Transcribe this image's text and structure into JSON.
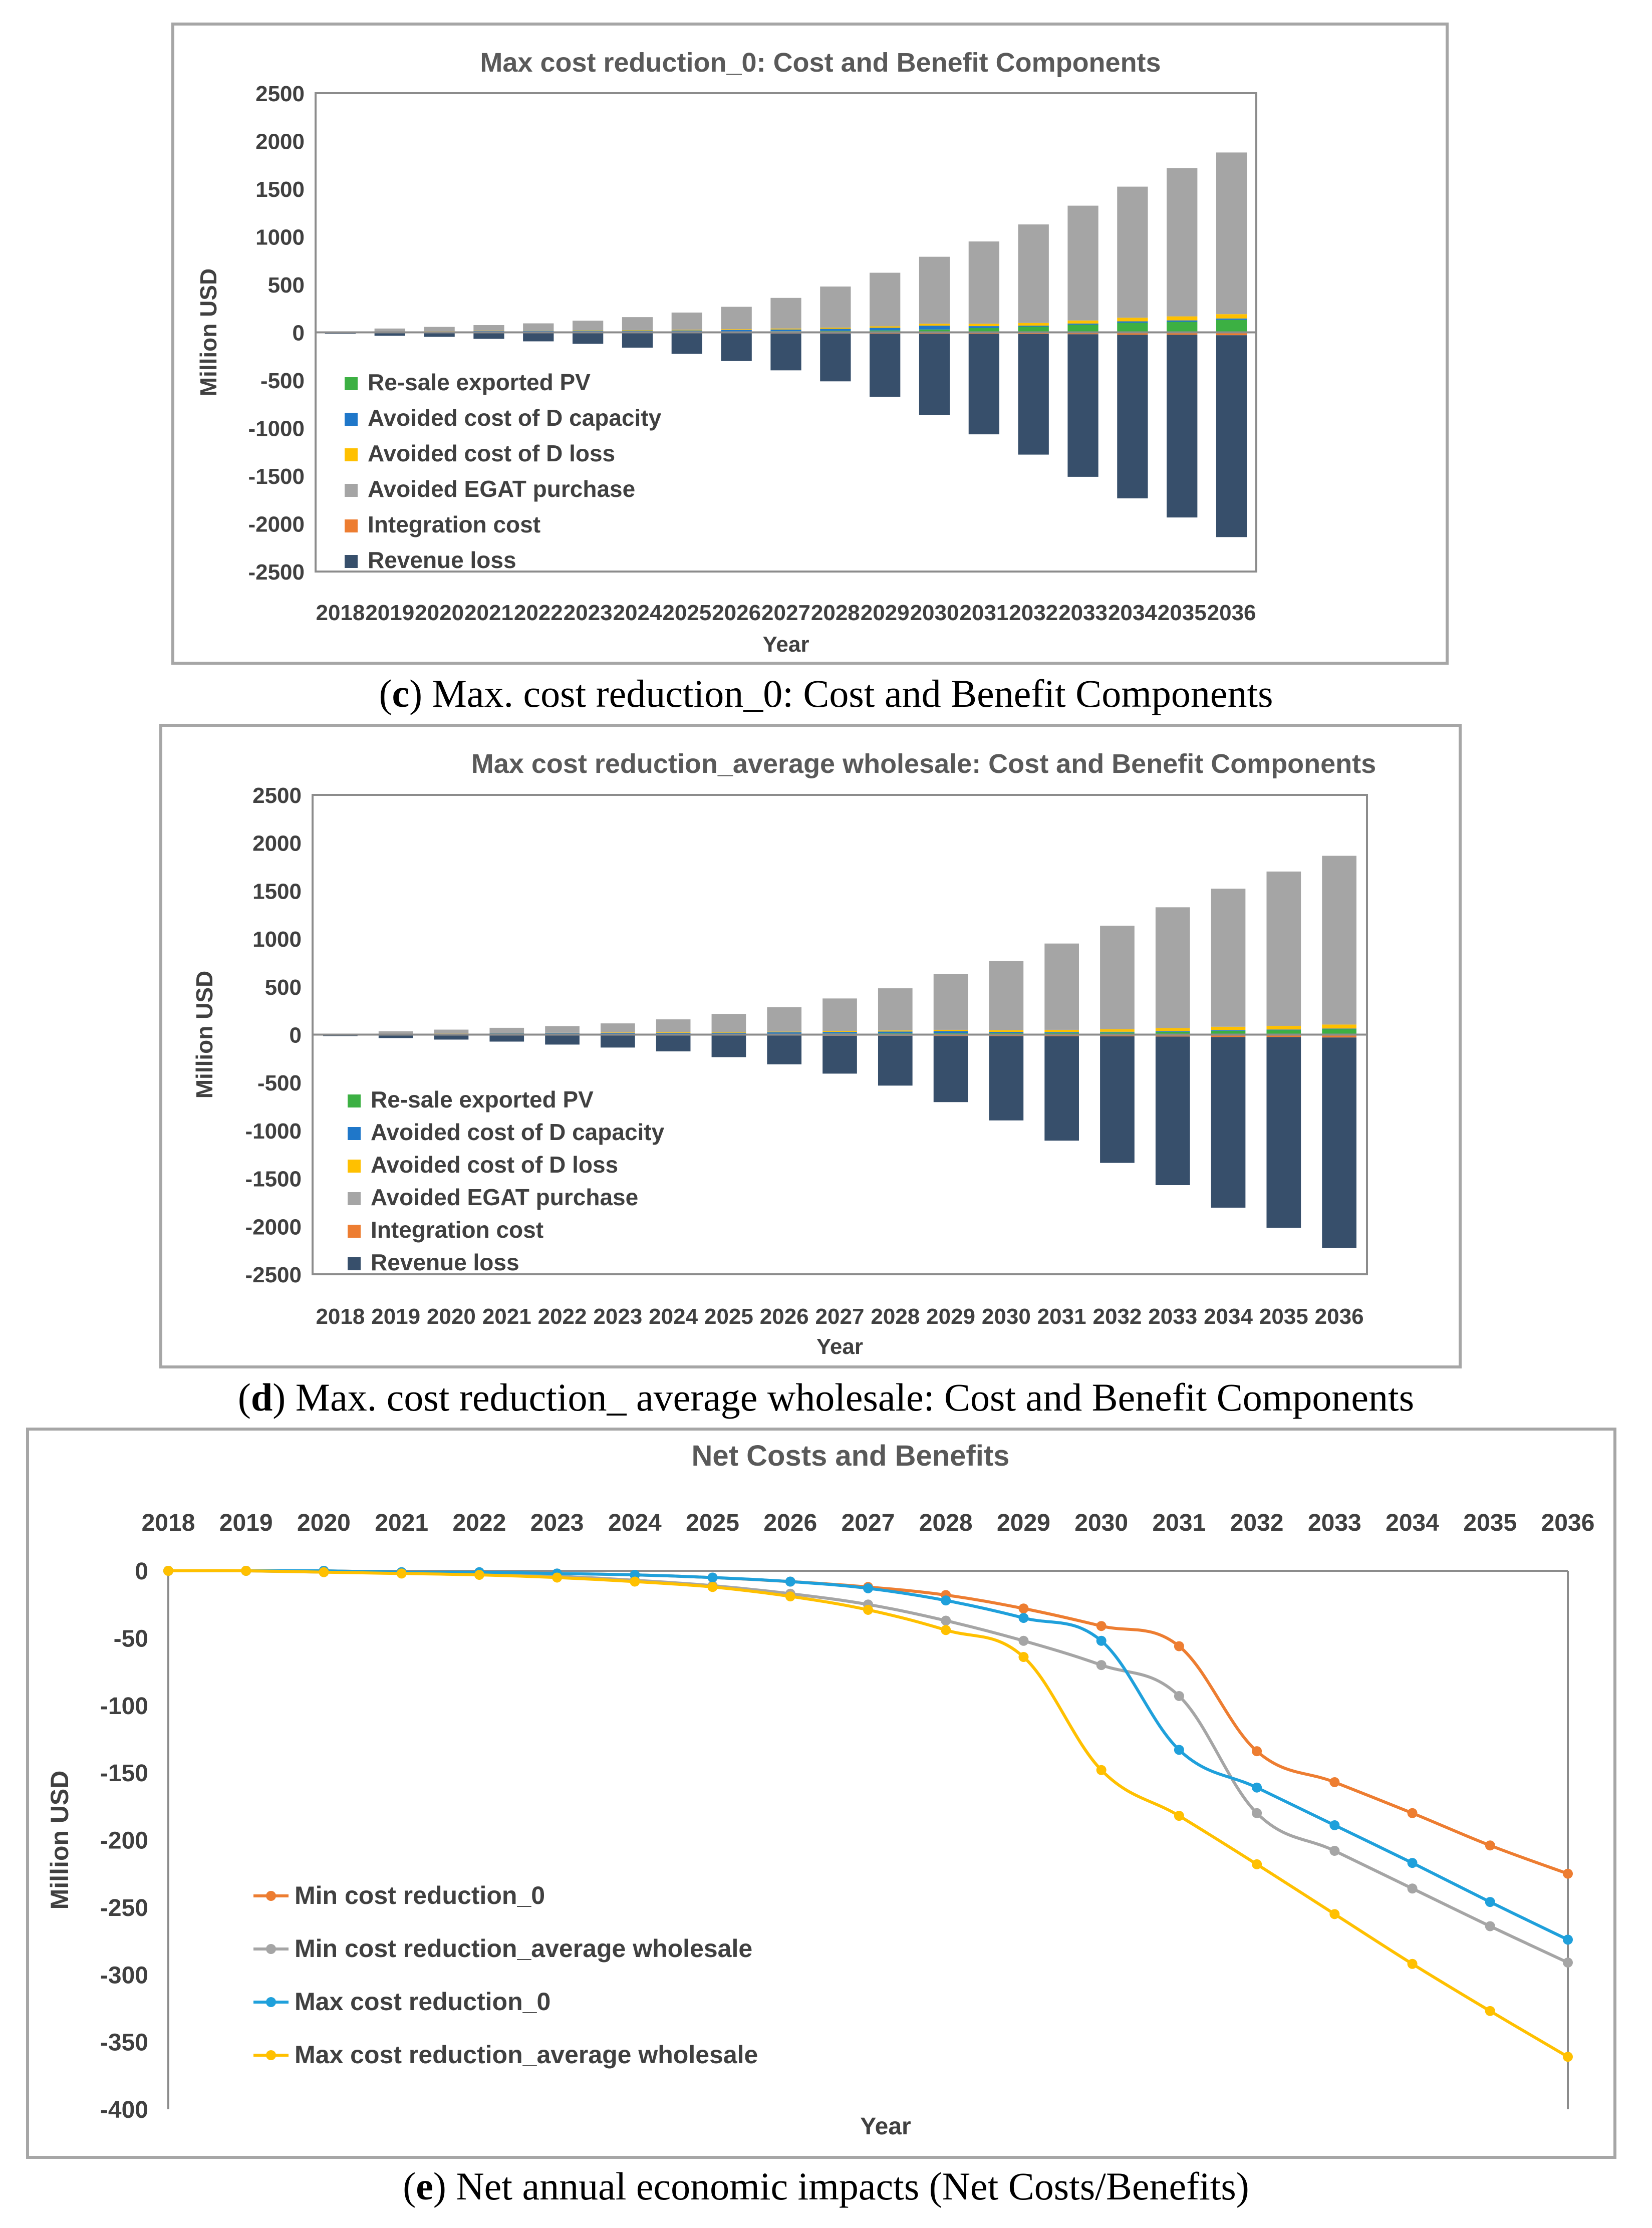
{
  "charts": [
    {
      "type": "bar",
      "stacked": true,
      "title": "Max cost reduction_0: Cost and Benefit Components",
      "caption_letter": "c",
      "caption_text": "Max. cost reduction_0: Cost and Benefit Components",
      "xlabel": "Year",
      "ylabel": "Million USD",
      "ylim": [
        -2500,
        2500
      ],
      "yticks": [
        2500,
        2000,
        1500,
        1000,
        500,
        0,
        -500,
        -1000,
        -1500,
        -2000,
        -2500
      ],
      "categories": [
        "2018",
        "2019",
        "2020",
        "2021",
        "2022",
        "2023",
        "2024",
        "2025",
        "2026",
        "2027",
        "2028",
        "2029",
        "2030",
        "2031",
        "2032",
        "2033",
        "2034",
        "2035",
        "2036"
      ],
      "series": [
        {
          "name": "Re-sale exported PV",
          "color": "#3cb043",
          "values": [
            0,
            3,
            4,
            5,
            6,
            6,
            7,
            8,
            10,
            12,
            15,
            20,
            30,
            45,
            60,
            80,
            100,
            110,
            130
          ]
        },
        {
          "name": "Avoided cost of D capacity",
          "color": "#1f77c9",
          "values": [
            1,
            5,
            6,
            8,
            10,
            12,
            12,
            12,
            14,
            18,
            22,
            28,
            40,
            20,
            10,
            12,
            15,
            15,
            15
          ]
        },
        {
          "name": "Avoided cost of D loss",
          "color": "#ffc000",
          "values": [
            0,
            2,
            2,
            3,
            3,
            4,
            5,
            7,
            8,
            10,
            12,
            15,
            20,
            25,
            28,
            32,
            38,
            42,
            45
          ]
        },
        {
          "name": "Avoided EGAT purchase",
          "color": "#a5a5a5",
          "values": [
            0,
            30,
            45,
            60,
            75,
            100,
            135,
            180,
            235,
            320,
            430,
            560,
            700,
            860,
            1030,
            1200,
            1370,
            1550,
            1690
          ]
        },
        {
          "name": "Integration cost",
          "color": "#ed7d31",
          "values": [
            -10,
            -6,
            -7,
            -8,
            -9,
            -10,
            -10,
            -10,
            -10,
            -12,
            -12,
            -14,
            -15,
            -16,
            -18,
            -20,
            -25,
            -25,
            -30
          ]
        },
        {
          "name": "Revenue loss",
          "color": "#374f6b",
          "values": [
            -5,
            -30,
            -40,
            -60,
            -85,
            -110,
            -150,
            -215,
            -290,
            -385,
            -500,
            -660,
            -850,
            -1050,
            -1260,
            -1490,
            -1710,
            -1910,
            -2110
          ]
        }
      ]
    },
    {
      "type": "bar",
      "stacked": true,
      "title": "Max cost reduction_average wholesale: Cost and Benefit Components",
      "caption_letter": "d",
      "caption_text": "Max. cost reduction_ average wholesale: Cost and Benefit Components",
      "xlabel": "Year",
      "ylabel": "Million USD",
      "ylim": [
        -2500,
        2500
      ],
      "yticks": [
        2500,
        2000,
        1500,
        1000,
        500,
        0,
        -500,
        -1000,
        -1500,
        -2000,
        -2500
      ],
      "categories": [
        "2018",
        "2019",
        "2020",
        "2021",
        "2022",
        "2023",
        "2024",
        "2025",
        "2026",
        "2027",
        "2028",
        "2029",
        "2030",
        "2031",
        "2032",
        "2033",
        "2034",
        "2035",
        "2036"
      ],
      "series": [
        {
          "name": "Re-sale exported PV",
          "color": "#3cb043",
          "values": [
            0,
            3,
            4,
            5,
            6,
            6,
            7,
            8,
            10,
            12,
            14,
            16,
            18,
            20,
            22,
            30,
            40,
            45,
            55
          ]
        },
        {
          "name": "Avoided cost of D capacity",
          "color": "#1f77c9",
          "values": [
            1,
            5,
            6,
            8,
            10,
            12,
            12,
            12,
            14,
            16,
            18,
            20,
            10,
            8,
            8,
            8,
            8,
            8,
            8
          ]
        },
        {
          "name": "Avoided cost of D loss",
          "color": "#ffc000",
          "values": [
            0,
            2,
            2,
            3,
            3,
            4,
            5,
            6,
            7,
            9,
            11,
            14,
            18,
            22,
            26,
            30,
            34,
            38,
            42
          ]
        },
        {
          "name": "Avoided EGAT purchase",
          "color": "#a5a5a5",
          "values": [
            0,
            25,
            40,
            55,
            70,
            95,
            135,
            190,
            255,
            340,
            440,
            580,
            720,
            900,
            1080,
            1260,
            1440,
            1610,
            1760
          ]
        },
        {
          "name": "Integration cost",
          "color": "#ed7d31",
          "values": [
            -10,
            -6,
            -7,
            -8,
            -9,
            -10,
            -10,
            -10,
            -10,
            -12,
            -12,
            -14,
            -15,
            -16,
            -18,
            -20,
            -25,
            -25,
            -30
          ]
        },
        {
          "name": "Revenue loss",
          "color": "#374f6b",
          "values": [
            -5,
            -30,
            -45,
            -65,
            -95,
            -125,
            -165,
            -225,
            -300,
            -395,
            -520,
            -690,
            -880,
            -1090,
            -1320,
            -1550,
            -1780,
            -1990,
            -2195
          ]
        }
      ]
    }
  ],
  "chart_data": {
    "type": "line",
    "title": "Net Costs and Benefits",
    "caption_letter": "e",
    "caption_text": "Net annual economic impacts (Net Costs/Benefits)",
    "xlabel": "Year",
    "ylabel": "Million USD",
    "ylim": [
      -400,
      0
    ],
    "yticks": [
      0,
      -50,
      -100,
      -150,
      -200,
      -250,
      -300,
      -350,
      -400
    ],
    "categories": [
      "2018",
      "2019",
      "2020",
      "2021",
      "2022",
      "2023",
      "2024",
      "2025",
      "2026",
      "2027",
      "2028",
      "2029",
      "2030",
      "2031",
      "2032",
      "2033",
      "2034",
      "2035",
      "2036"
    ],
    "series": [
      {
        "name": "Min cost reduction_0",
        "color": "#ed7d31",
        "values": [
          0,
          0,
          0,
          -1,
          -1,
          -2,
          -3,
          -5,
          -8,
          -12,
          -18,
          -28,
          -41,
          -56,
          -134,
          -157,
          -180,
          -204,
          -225
        ]
      },
      {
        "name": "Min cost reduction_average wholesale",
        "color": "#a5a5a5",
        "values": [
          0,
          0,
          -1,
          -1,
          -2,
          -4,
          -7,
          -11,
          -17,
          -25,
          -37,
          -52,
          -70,
          -93,
          -180,
          -208,
          -236,
          -264,
          -291
        ]
      },
      {
        "name": "Max cost reduction_0",
        "color": "#1fa0db",
        "values": [
          0,
          0,
          0,
          -1,
          -1,
          -2,
          -3,
          -5,
          -8,
          -13,
          -22,
          -35,
          -52,
          -133,
          -161,
          -189,
          -217,
          -246,
          -274
        ]
      },
      {
        "name": "Max cost reduction_average wholesale",
        "color": "#ffc000",
        "values": [
          0,
          0,
          -1,
          -2,
          -3,
          -5,
          -8,
          -12,
          -19,
          -29,
          -44,
          -64,
          -148,
          -182,
          -218,
          -255,
          -292,
          -327,
          -361
        ]
      }
    ]
  }
}
